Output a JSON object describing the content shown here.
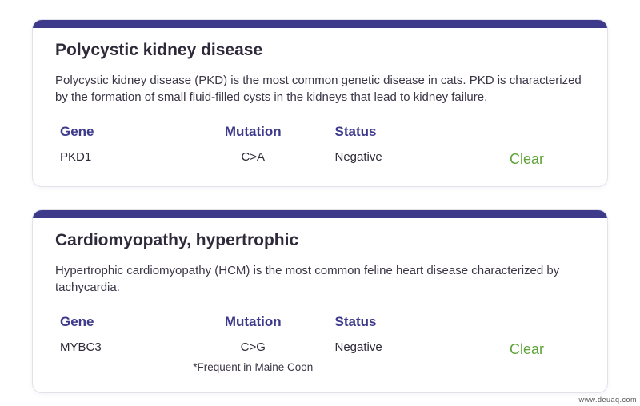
{
  "colors": {
    "accent_bar": "#3d3a8c",
    "heading_text": "#2f2a3a",
    "column_header": "#3d3a8c",
    "body_text": "#3b3546",
    "result_clear": "#5fa23a",
    "card_bg": "#ffffff",
    "card_border": "#e3e1ea",
    "page_bg": "#ffffff"
  },
  "headers": {
    "gene": "Gene",
    "mutation": "Mutation",
    "status": "Status"
  },
  "cards": [
    {
      "title": "Polycystic kidney disease",
      "description": "Polycystic kidney disease (PKD) is the most common genetic disease in cats. PKD is characterized by the formation of small fluid-filled cysts in the kidneys that lead to kidney failure.",
      "gene": "PKD1",
      "mutation": "C>A",
      "mutation_note": "",
      "status": "Negative",
      "result": "Clear"
    },
    {
      "title": "Cardiomyopathy, hypertrophic",
      "description": "Hypertrophic cardiomyopathy (HCM) is the most common feline heart disease characterized by tachycardia.",
      "gene": "MYBC3",
      "mutation": "C>G",
      "mutation_note": "*Frequent in Maine Coon",
      "status": "Negative",
      "result": "Clear"
    }
  ],
  "watermark": "www.deuaq.com"
}
